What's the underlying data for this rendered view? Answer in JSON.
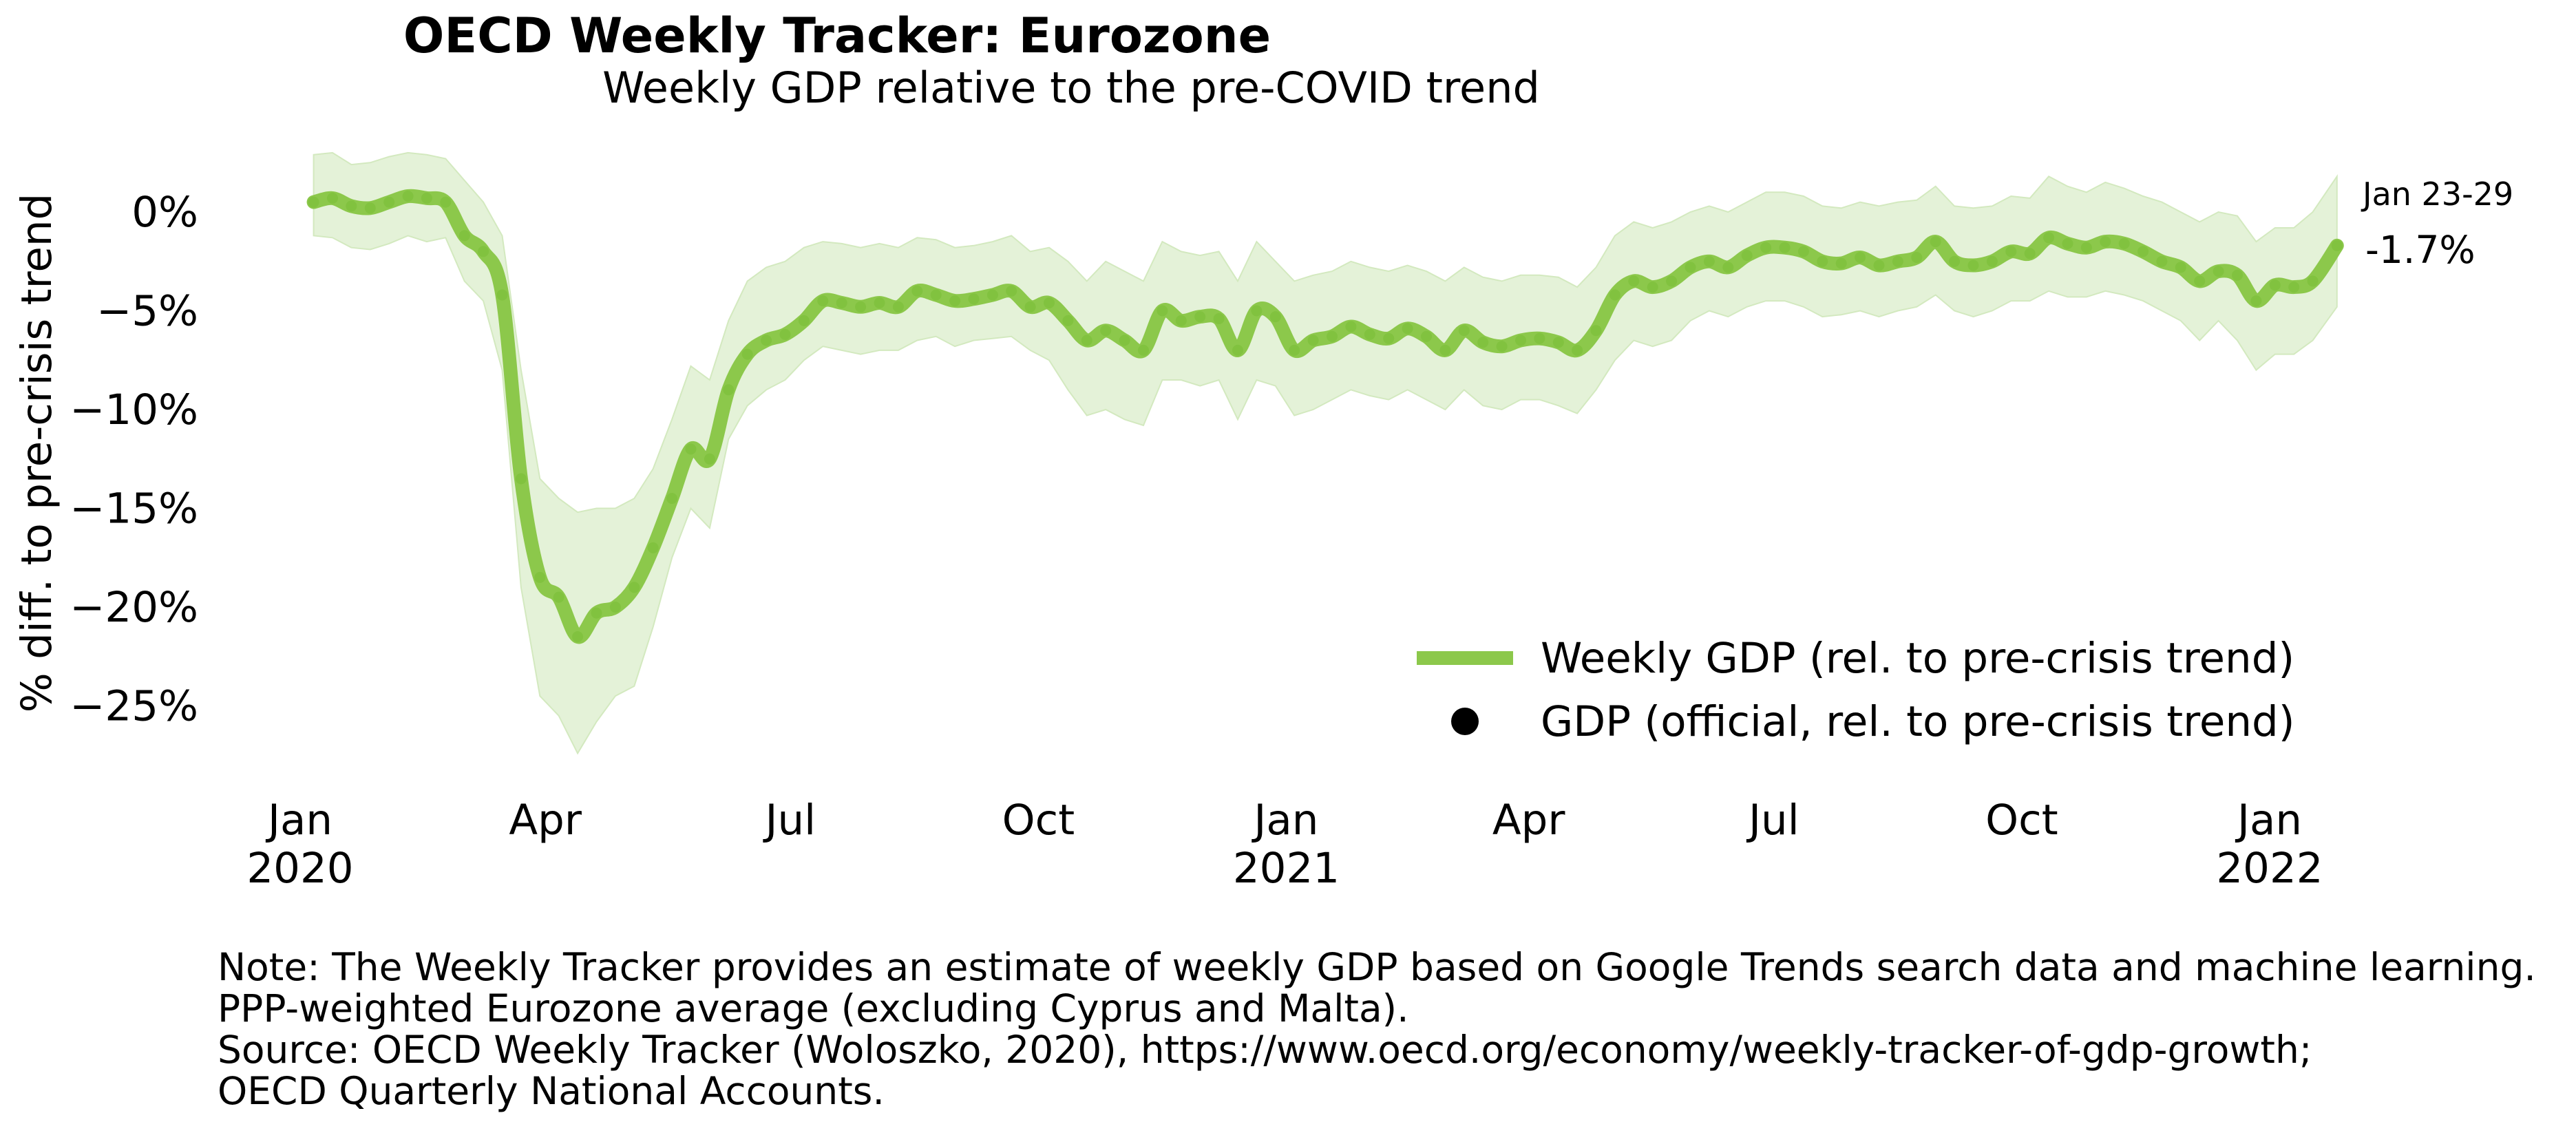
{
  "chart_data": {
    "type": "line",
    "title": "OECD Weekly Tracker: Eurozone",
    "subtitle": "Weekly GDP relative to the pre-COVID trend",
    "ylabel": "% diff. to pre-crisis trend",
    "xlabel": "",
    "ylim": [
      -28,
      3
    ],
    "yticks": [
      {
        "value": 0,
        "label": "0%"
      },
      {
        "value": -5,
        "label": "−5%"
      },
      {
        "value": -10,
        "label": "−10%"
      },
      {
        "value": -15,
        "label": "−15%"
      },
      {
        "value": -20,
        "label": "−20%"
      },
      {
        "value": -25,
        "label": "−25%"
      }
    ],
    "xticks": [
      {
        "date": "2020-01-01",
        "line1": "Jan",
        "line2": "2020"
      },
      {
        "date": "2020-04-01",
        "line1": "Apr",
        "line2": ""
      },
      {
        "date": "2020-07-01",
        "line1": "Jul",
        "line2": ""
      },
      {
        "date": "2020-10-01",
        "line1": "Oct",
        "line2": ""
      },
      {
        "date": "2021-01-01",
        "line1": "Jan",
        "line2": "2021"
      },
      {
        "date": "2021-04-01",
        "line1": "Apr",
        "line2": ""
      },
      {
        "date": "2021-07-01",
        "line1": "Jul",
        "line2": ""
      },
      {
        "date": "2021-10-01",
        "line1": "Oct",
        "line2": ""
      },
      {
        "date": "2022-01-01",
        "line1": "Jan",
        "line2": "2022"
      }
    ],
    "grid": false,
    "legend_position": "lower-right",
    "series": [
      {
        "name": "Weekly GDP (rel. to pre-crisis trend)",
        "color": "#8cc84b",
        "band_color": "#e4f2d8",
        "points": [
          [
            "2020-01-06",
            0.5
          ],
          [
            "2020-01-13",
            0.7
          ],
          [
            "2020-01-20",
            0.3
          ],
          [
            "2020-01-27",
            0.2
          ],
          [
            "2020-02-03",
            0.5
          ],
          [
            "2020-02-10",
            0.8
          ],
          [
            "2020-02-17",
            0.7
          ],
          [
            "2020-02-24",
            0.5
          ],
          [
            "2020-03-02",
            -1.2
          ],
          [
            "2020-03-09",
            -2.0
          ],
          [
            "2020-03-16",
            -4.2
          ],
          [
            "2020-03-23",
            -13.5
          ],
          [
            "2020-03-30",
            -18.5
          ],
          [
            "2020-04-06",
            -19.5
          ],
          [
            "2020-04-13",
            -21.5
          ],
          [
            "2020-04-20",
            -20.3
          ],
          [
            "2020-04-27",
            -20.0
          ],
          [
            "2020-05-04",
            -19.0
          ],
          [
            "2020-05-11",
            -17.0
          ],
          [
            "2020-05-18",
            -14.5
          ],
          [
            "2020-05-25",
            -12.0
          ],
          [
            "2020-06-01",
            -12.5
          ],
          [
            "2020-06-08",
            -9.0
          ],
          [
            "2020-06-15",
            -7.2
          ],
          [
            "2020-06-22",
            -6.5
          ],
          [
            "2020-06-29",
            -6.2
          ],
          [
            "2020-07-06",
            -5.5
          ],
          [
            "2020-07-13",
            -4.5
          ],
          [
            "2020-07-20",
            -4.6
          ],
          [
            "2020-07-27",
            -4.8
          ],
          [
            "2020-08-03",
            -4.6
          ],
          [
            "2020-08-10",
            -4.8
          ],
          [
            "2020-08-17",
            -4.0
          ],
          [
            "2020-08-24",
            -4.2
          ],
          [
            "2020-08-31",
            -4.5
          ],
          [
            "2020-09-07",
            -4.4
          ],
          [
            "2020-09-14",
            -4.2
          ],
          [
            "2020-09-21",
            -4.0
          ],
          [
            "2020-09-28",
            -4.8
          ],
          [
            "2020-10-05",
            -4.6
          ],
          [
            "2020-10-12",
            -5.5
          ],
          [
            "2020-10-19",
            -6.5
          ],
          [
            "2020-10-26",
            -6.0
          ],
          [
            "2020-11-02",
            -6.5
          ],
          [
            "2020-11-09",
            -7.0
          ],
          [
            "2020-11-16",
            -5.0
          ],
          [
            "2020-11-23",
            -5.5
          ],
          [
            "2020-11-30",
            -5.3
          ],
          [
            "2020-12-07",
            -5.4
          ],
          [
            "2020-12-14",
            -7.0
          ],
          [
            "2020-12-21",
            -5.0
          ],
          [
            "2020-12-28",
            -5.3
          ],
          [
            "2021-01-04",
            -7.0
          ],
          [
            "2021-01-11",
            -6.5
          ],
          [
            "2021-01-18",
            -6.3
          ],
          [
            "2021-01-25",
            -5.8
          ],
          [
            "2021-02-01",
            -6.2
          ],
          [
            "2021-02-08",
            -6.4
          ],
          [
            "2021-02-15",
            -5.9
          ],
          [
            "2021-02-22",
            -6.3
          ],
          [
            "2021-03-01",
            -7.0
          ],
          [
            "2021-03-08",
            -6.0
          ],
          [
            "2021-03-15",
            -6.6
          ],
          [
            "2021-03-22",
            -6.8
          ],
          [
            "2021-03-29",
            -6.5
          ],
          [
            "2021-04-05",
            -6.4
          ],
          [
            "2021-04-12",
            -6.6
          ],
          [
            "2021-04-19",
            -7.0
          ],
          [
            "2021-04-26",
            -6.0
          ],
          [
            "2021-05-03",
            -4.2
          ],
          [
            "2021-05-10",
            -3.5
          ],
          [
            "2021-05-17",
            -3.8
          ],
          [
            "2021-05-24",
            -3.5
          ],
          [
            "2021-05-31",
            -2.8
          ],
          [
            "2021-06-07",
            -2.5
          ],
          [
            "2021-06-14",
            -2.8
          ],
          [
            "2021-06-21",
            -2.2
          ],
          [
            "2021-06-28",
            -1.8
          ],
          [
            "2021-07-05",
            -1.8
          ],
          [
            "2021-07-12",
            -2.0
          ],
          [
            "2021-07-19",
            -2.5
          ],
          [
            "2021-07-26",
            -2.6
          ],
          [
            "2021-08-02",
            -2.3
          ],
          [
            "2021-08-09",
            -2.7
          ],
          [
            "2021-08-16",
            -2.5
          ],
          [
            "2021-08-23",
            -2.3
          ],
          [
            "2021-08-30",
            -1.5
          ],
          [
            "2021-09-06",
            -2.5
          ],
          [
            "2021-09-13",
            -2.7
          ],
          [
            "2021-09-20",
            -2.5
          ],
          [
            "2021-09-27",
            -2.0
          ],
          [
            "2021-10-04",
            -2.1
          ],
          [
            "2021-10-11",
            -1.3
          ],
          [
            "2021-10-18",
            -1.6
          ],
          [
            "2021-10-25",
            -1.8
          ],
          [
            "2021-11-01",
            -1.5
          ],
          [
            "2021-11-08",
            -1.6
          ],
          [
            "2021-11-15",
            -2.0
          ],
          [
            "2021-11-22",
            -2.5
          ],
          [
            "2021-11-29",
            -2.8
          ],
          [
            "2021-12-06",
            -3.5
          ],
          [
            "2021-12-13",
            -3.0
          ],
          [
            "2021-12-20",
            -3.2
          ],
          [
            "2021-12-27",
            -4.5
          ],
          [
            "2022-01-03",
            -3.7
          ],
          [
            "2022-01-10",
            -3.8
          ],
          [
            "2022-01-17",
            -3.5
          ],
          [
            "2022-01-26",
            -1.7
          ]
        ],
        "band": [
          [
            "2020-01-06",
            -1.2,
            2.9
          ],
          [
            "2020-01-13",
            -1.3,
            3.0
          ],
          [
            "2020-01-20",
            -1.8,
            2.4
          ],
          [
            "2020-01-27",
            -1.9,
            2.5
          ],
          [
            "2020-02-03",
            -1.6,
            2.8
          ],
          [
            "2020-02-10",
            -1.2,
            3.0
          ],
          [
            "2020-02-17",
            -1.5,
            2.9
          ],
          [
            "2020-02-24",
            -1.3,
            2.7
          ],
          [
            "2020-03-02",
            -3.5,
            1.6
          ],
          [
            "2020-03-09",
            -4.5,
            0.5
          ],
          [
            "2020-03-16",
            -8.0,
            -1.2
          ],
          [
            "2020-03-23",
            -19.0,
            -8.0
          ],
          [
            "2020-03-30",
            -24.5,
            -13.5
          ],
          [
            "2020-04-06",
            -25.5,
            -14.5
          ],
          [
            "2020-04-13",
            -27.4,
            -15.2
          ],
          [
            "2020-04-20",
            -25.8,
            -15.0
          ],
          [
            "2020-04-27",
            -24.5,
            -15.0
          ],
          [
            "2020-05-04",
            -24.0,
            -14.5
          ],
          [
            "2020-05-11",
            -21.0,
            -13.0
          ],
          [
            "2020-05-18",
            -17.5,
            -10.5
          ],
          [
            "2020-05-25",
            -15.0,
            -7.8
          ],
          [
            "2020-06-01",
            -16.0,
            -8.5
          ],
          [
            "2020-06-08",
            -11.5,
            -5.5
          ],
          [
            "2020-06-15",
            -9.8,
            -3.5
          ],
          [
            "2020-06-22",
            -9.0,
            -2.8
          ],
          [
            "2020-06-29",
            -8.5,
            -2.5
          ],
          [
            "2020-07-06",
            -7.5,
            -1.8
          ],
          [
            "2020-07-13",
            -6.8,
            -1.5
          ],
          [
            "2020-07-20",
            -7.0,
            -1.6
          ],
          [
            "2020-07-27",
            -7.2,
            -1.8
          ],
          [
            "2020-08-03",
            -7.0,
            -1.6
          ],
          [
            "2020-08-10",
            -7.0,
            -1.8
          ],
          [
            "2020-08-17",
            -6.5,
            -1.3
          ],
          [
            "2020-08-24",
            -6.3,
            -1.4
          ],
          [
            "2020-08-31",
            -6.8,
            -1.8
          ],
          [
            "2020-09-07",
            -6.5,
            -1.7
          ],
          [
            "2020-09-14",
            -6.4,
            -1.5
          ],
          [
            "2020-09-21",
            -6.3,
            -1.2
          ],
          [
            "2020-09-28",
            -7.0,
            -2.0
          ],
          [
            "2020-10-05",
            -7.5,
            -1.8
          ],
          [
            "2020-10-12",
            -9.0,
            -2.5
          ],
          [
            "2020-10-19",
            -10.3,
            -3.5
          ],
          [
            "2020-10-26",
            -10.0,
            -2.5
          ],
          [
            "2020-11-02",
            -10.5,
            -3.0
          ],
          [
            "2020-11-09",
            -10.8,
            -3.5
          ],
          [
            "2020-11-16",
            -8.5,
            -1.5
          ],
          [
            "2020-11-23",
            -8.5,
            -2.0
          ],
          [
            "2020-11-30",
            -8.8,
            -2.2
          ],
          [
            "2020-12-07",
            -8.5,
            -2.0
          ],
          [
            "2020-12-14",
            -10.5,
            -3.5
          ],
          [
            "2020-12-21",
            -8.5,
            -1.5
          ],
          [
            "2020-12-28",
            -8.8,
            -2.5
          ],
          [
            "2021-01-04",
            -10.3,
            -3.5
          ],
          [
            "2021-01-11",
            -10.0,
            -3.2
          ],
          [
            "2021-01-18",
            -9.5,
            -3.0
          ],
          [
            "2021-01-25",
            -9.0,
            -2.5
          ],
          [
            "2021-02-01",
            -9.3,
            -2.8
          ],
          [
            "2021-02-08",
            -9.5,
            -3.0
          ],
          [
            "2021-02-15",
            -9.0,
            -2.7
          ],
          [
            "2021-02-22",
            -9.5,
            -3.0
          ],
          [
            "2021-03-01",
            -10.0,
            -3.5
          ],
          [
            "2021-03-08",
            -9.0,
            -2.8
          ],
          [
            "2021-03-15",
            -9.8,
            -3.3
          ],
          [
            "2021-03-22",
            -10.0,
            -3.5
          ],
          [
            "2021-03-29",
            -9.5,
            -3.2
          ],
          [
            "2021-04-05",
            -9.5,
            -3.2
          ],
          [
            "2021-04-12",
            -9.8,
            -3.3
          ],
          [
            "2021-04-19",
            -10.2,
            -3.8
          ],
          [
            "2021-04-26",
            -9.0,
            -2.8
          ],
          [
            "2021-05-03",
            -7.5,
            -1.2
          ],
          [
            "2021-05-10",
            -6.5,
            -0.5
          ],
          [
            "2021-05-17",
            -6.8,
            -0.8
          ],
          [
            "2021-05-24",
            -6.5,
            -0.5
          ],
          [
            "2021-05-31",
            -5.5,
            0.0
          ],
          [
            "2021-06-07",
            -5.0,
            0.3
          ],
          [
            "2021-06-14",
            -5.3,
            0.0
          ],
          [
            "2021-06-21",
            -4.8,
            0.5
          ],
          [
            "2021-06-28",
            -4.5,
            1.0
          ],
          [
            "2021-07-05",
            -4.5,
            1.0
          ],
          [
            "2021-07-12",
            -4.8,
            0.8
          ],
          [
            "2021-07-19",
            -5.3,
            0.3
          ],
          [
            "2021-07-26",
            -5.2,
            0.2
          ],
          [
            "2021-08-02",
            -5.0,
            0.5
          ],
          [
            "2021-08-09",
            -5.3,
            0.3
          ],
          [
            "2021-08-16",
            -5.0,
            0.5
          ],
          [
            "2021-08-23",
            -4.8,
            0.6
          ],
          [
            "2021-08-30",
            -4.2,
            1.3
          ],
          [
            "2021-09-06",
            -5.0,
            0.3
          ],
          [
            "2021-09-13",
            -5.3,
            0.2
          ],
          [
            "2021-09-20",
            -5.0,
            0.3
          ],
          [
            "2021-09-27",
            -4.5,
            0.8
          ],
          [
            "2021-10-04",
            -4.5,
            0.7
          ],
          [
            "2021-10-11",
            -4.0,
            1.8
          ],
          [
            "2021-10-18",
            -4.3,
            1.3
          ],
          [
            "2021-10-25",
            -4.3,
            1.0
          ],
          [
            "2021-11-01",
            -4.0,
            1.5
          ],
          [
            "2021-11-08",
            -4.2,
            1.2
          ],
          [
            "2021-11-15",
            -4.5,
            0.8
          ],
          [
            "2021-11-22",
            -5.0,
            0.5
          ],
          [
            "2021-11-29",
            -5.5,
            0.0
          ],
          [
            "2021-12-06",
            -6.5,
            -0.5
          ],
          [
            "2021-12-13",
            -5.5,
            0.0
          ],
          [
            "2021-12-20",
            -6.5,
            -0.2
          ],
          [
            "2021-12-27",
            -8.0,
            -1.5
          ],
          [
            "2022-01-03",
            -7.2,
            -0.8
          ],
          [
            "2022-01-10",
            -7.2,
            -0.8
          ],
          [
            "2022-01-17",
            -6.5,
            0.0
          ],
          [
            "2022-01-26",
            -4.8,
            1.8
          ]
        ]
      },
      {
        "name": "GDP (official, rel. to pre-crisis trend)",
        "color": "#000000",
        "points": []
      }
    ],
    "annotation": {
      "date_label": "Jan 23-29",
      "value_label": "-1.7%"
    }
  },
  "note": {
    "lines": [
      "Note: The Weekly Tracker provides an estimate of weekly GDP based on Google Trends search data and machine learning.",
      "PPP-weighted Eurozone average (excluding Cyprus and Malta).",
      "Source: OECD Weekly Tracker (Woloszko, 2020), https://www.oecd.org/economy/weekly-tracker-of-gdp-growth;",
      "OECD Quarterly National Accounts."
    ]
  }
}
